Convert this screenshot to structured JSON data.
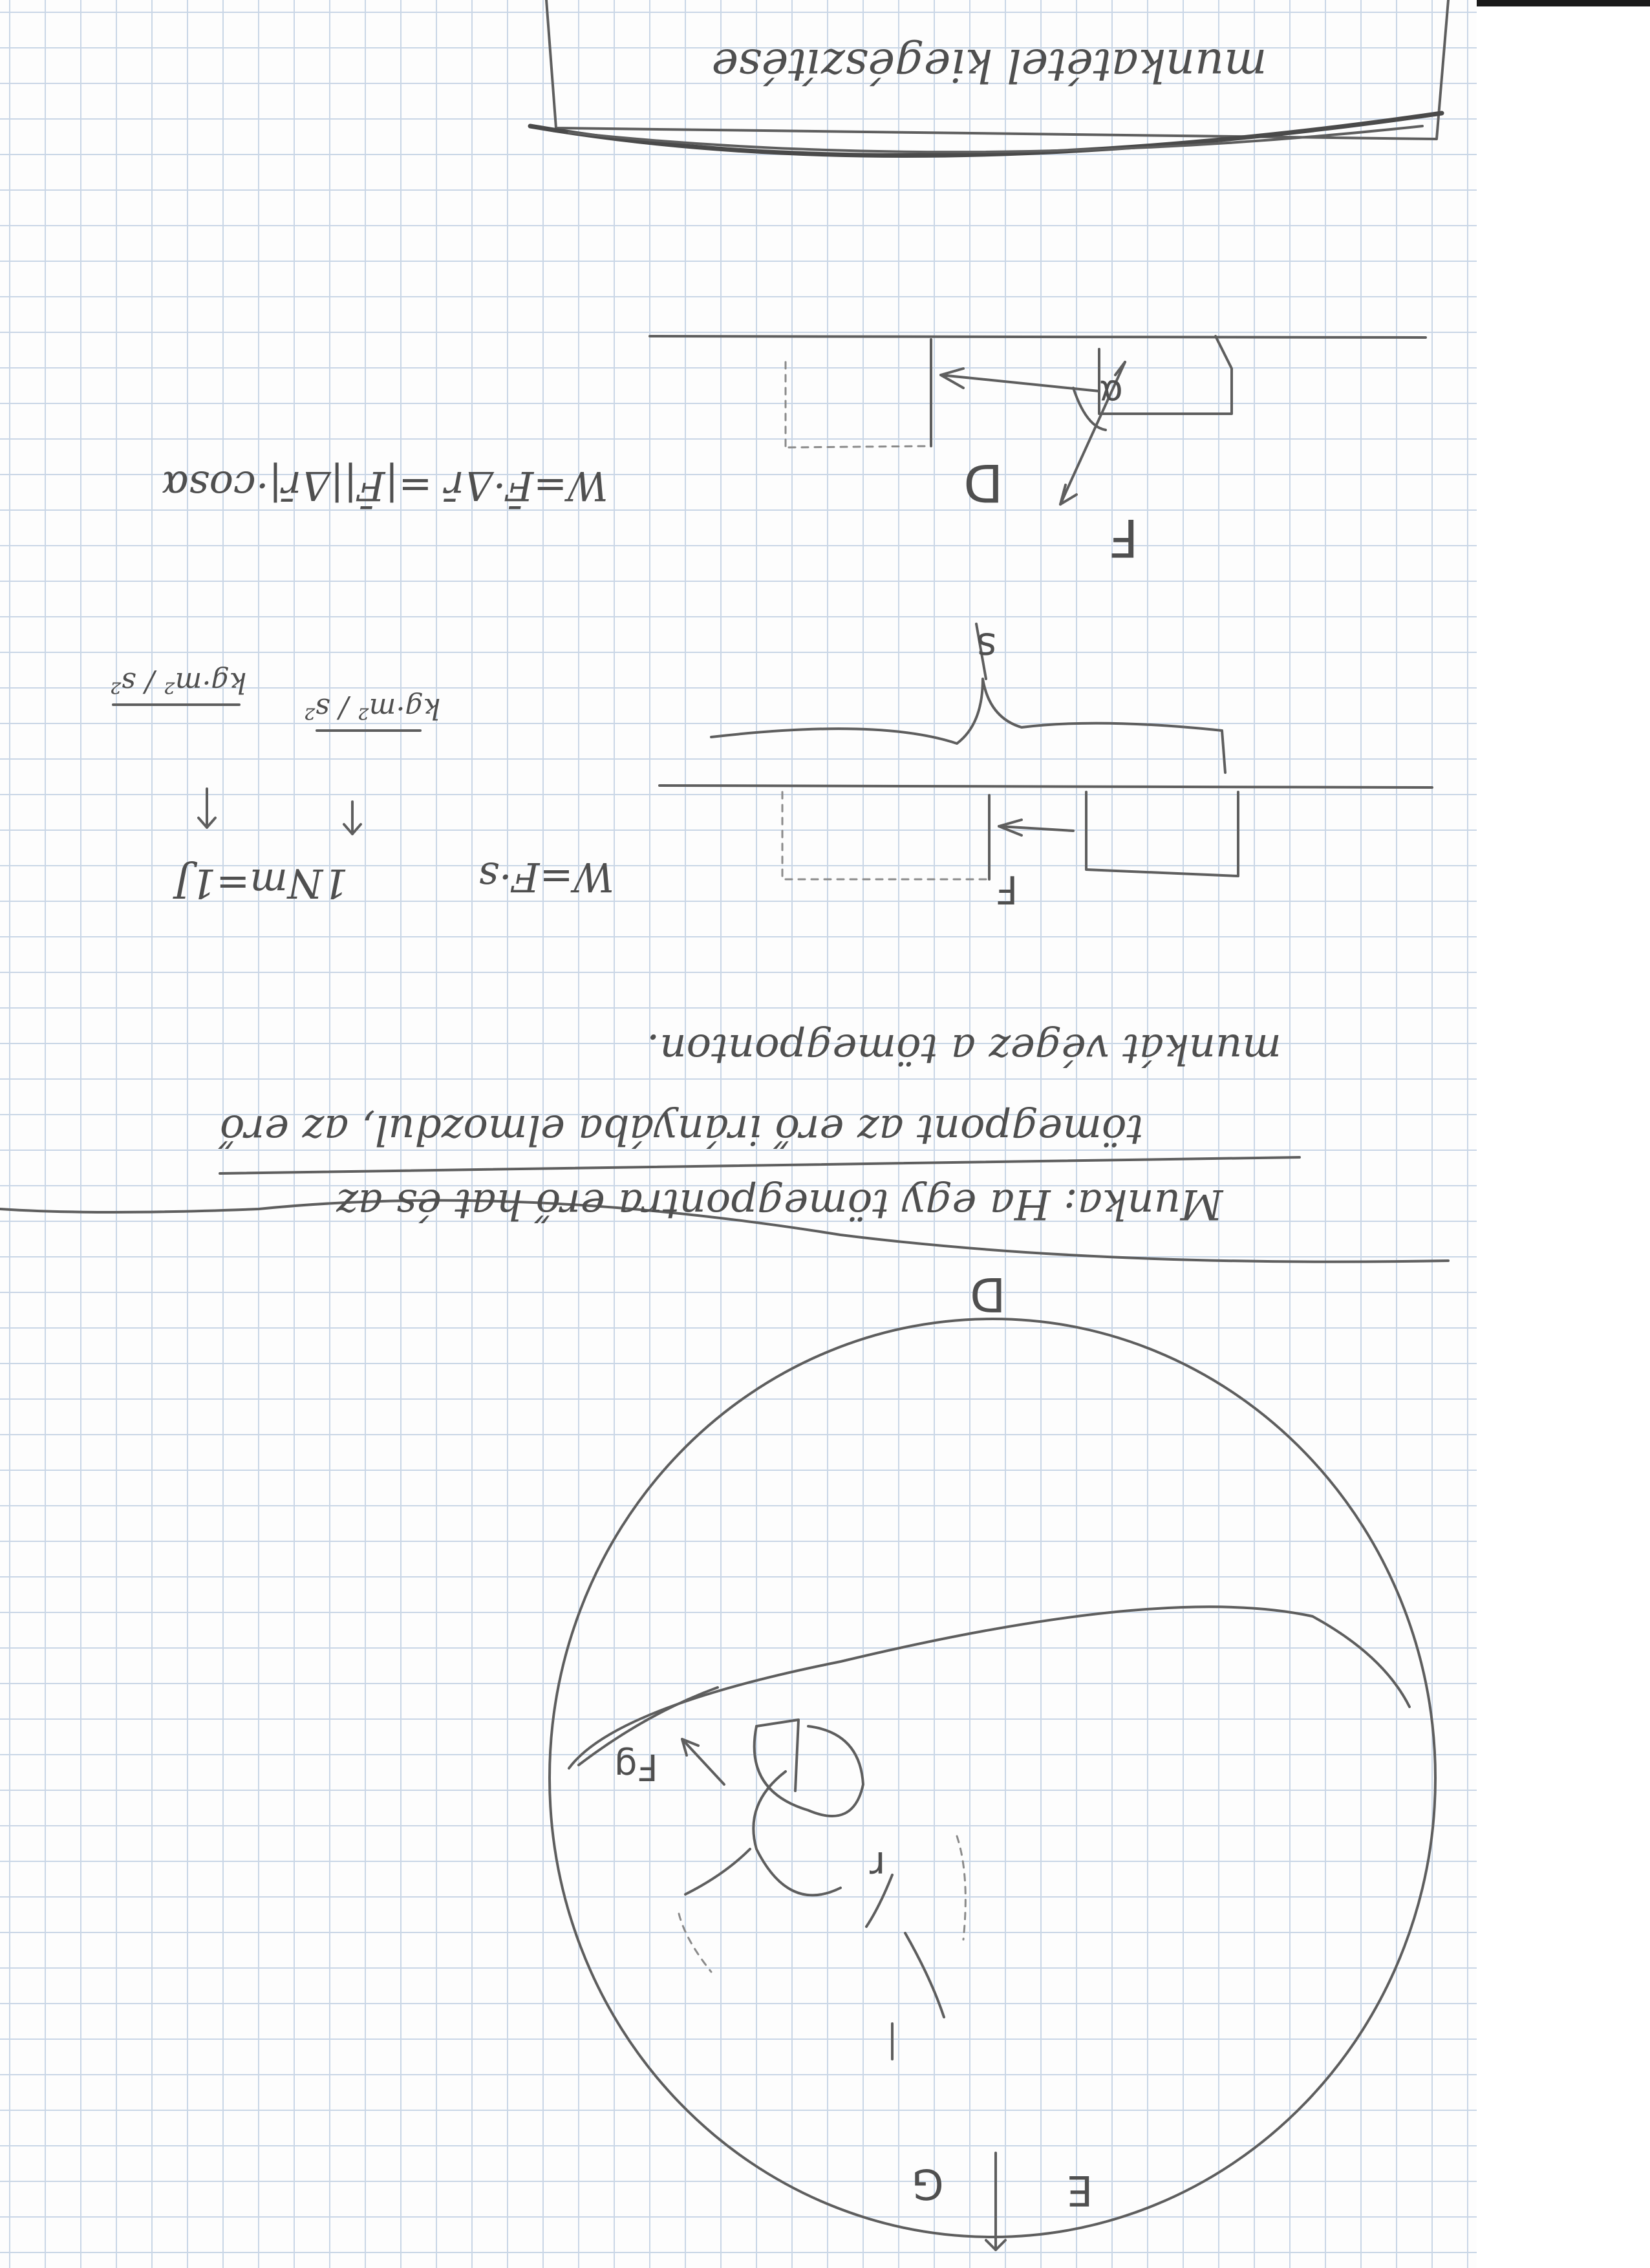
{
  "page": {
    "paper": "graph-paper",
    "grid_color": "#c9d6e6",
    "ink_color": "#5e5e5e",
    "orientation_of_writing": "upside-down"
  },
  "notes": {
    "title_box_text": "munkatétel kiegészítése",
    "label_d_top": "D",
    "label_f_top": "F",
    "label_alpha": "α",
    "formula_work_vector": "W=F̄·Δr̄ =|F̄||Δr̄|·cosα",
    "label_s": "s",
    "label_f_middle": "F",
    "formula_w_fs": "W=F·s",
    "formula_units": "1Nm=1J",
    "unit_kgm2_s2_a": "kg·m² / s²",
    "unit_kgm2_s2_b": "kg·m² / s²",
    "definition_line_1": "Munka: Ha egy tömegpontra erő hat és az",
    "definition_line_2": "tömegpont az erő irányába elmozdul, az erő",
    "definition_line_3": "munkát végez a tömegponton.",
    "label_d_bottom": "D",
    "label_e_bottom": "E",
    "label_g_bottom": "G",
    "label_fg": "Fg",
    "label_r": "r"
  }
}
